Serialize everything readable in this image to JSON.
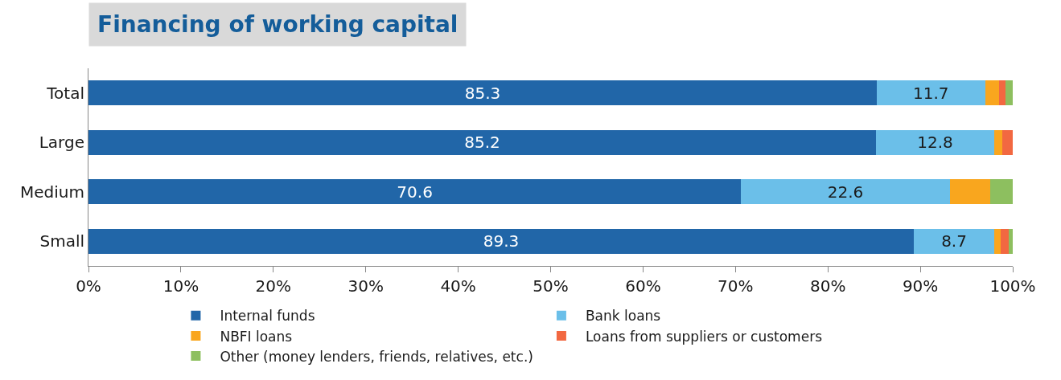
{
  "chart_data": {
    "type": "bar",
    "title": "Financing of working capital",
    "orientation": "horizontal",
    "stacked": true,
    "categories": [
      "Total",
      "Large",
      "Medium",
      "Small"
    ],
    "series": [
      {
        "name": "Internal funds",
        "color": "#2166a8",
        "values": [
          85.3,
          85.2,
          70.6,
          89.3
        ],
        "value_labels": [
          "85.3",
          "85.2",
          "70.6",
          "89.3"
        ]
      },
      {
        "name": "Bank loans",
        "color": "#6bbfe9",
        "values": [
          11.7,
          12.8,
          22.6,
          8.7
        ],
        "value_labels": [
          "11.7",
          "12.8",
          "22.6",
          "8.7"
        ]
      },
      {
        "name": "NBFI loans",
        "color": "#f9a61e",
        "values": [
          1.5,
          0.9,
          4.4,
          0.7
        ]
      },
      {
        "name": "Loans from suppliers or customers",
        "color": "#f26841",
        "values": [
          0.7,
          1.1,
          0,
          0.9
        ]
      },
      {
        "name": "Other (money lenders, friends, relatives, etc.)",
        "color": "#8dbf5f",
        "values": [
          0.8,
          0,
          2.4,
          0.4
        ]
      }
    ],
    "xlim": [
      0,
      100
    ],
    "xticks": [
      {
        "value": 0,
        "label": "0%"
      },
      {
        "value": 10,
        "label": "10%"
      },
      {
        "value": 20,
        "label": "20%"
      },
      {
        "value": 30,
        "label": "30%"
      },
      {
        "value": 40,
        "label": "40%"
      },
      {
        "value": 50,
        "label": "50%"
      },
      {
        "value": 60,
        "label": "60%"
      },
      {
        "value": 70,
        "label": "70%"
      },
      {
        "value": 80,
        "label": "80%"
      },
      {
        "value": 90,
        "label": "90%"
      },
      {
        "value": 100,
        "label": "100%"
      }
    ],
    "grid": false,
    "legend": "bottom"
  }
}
